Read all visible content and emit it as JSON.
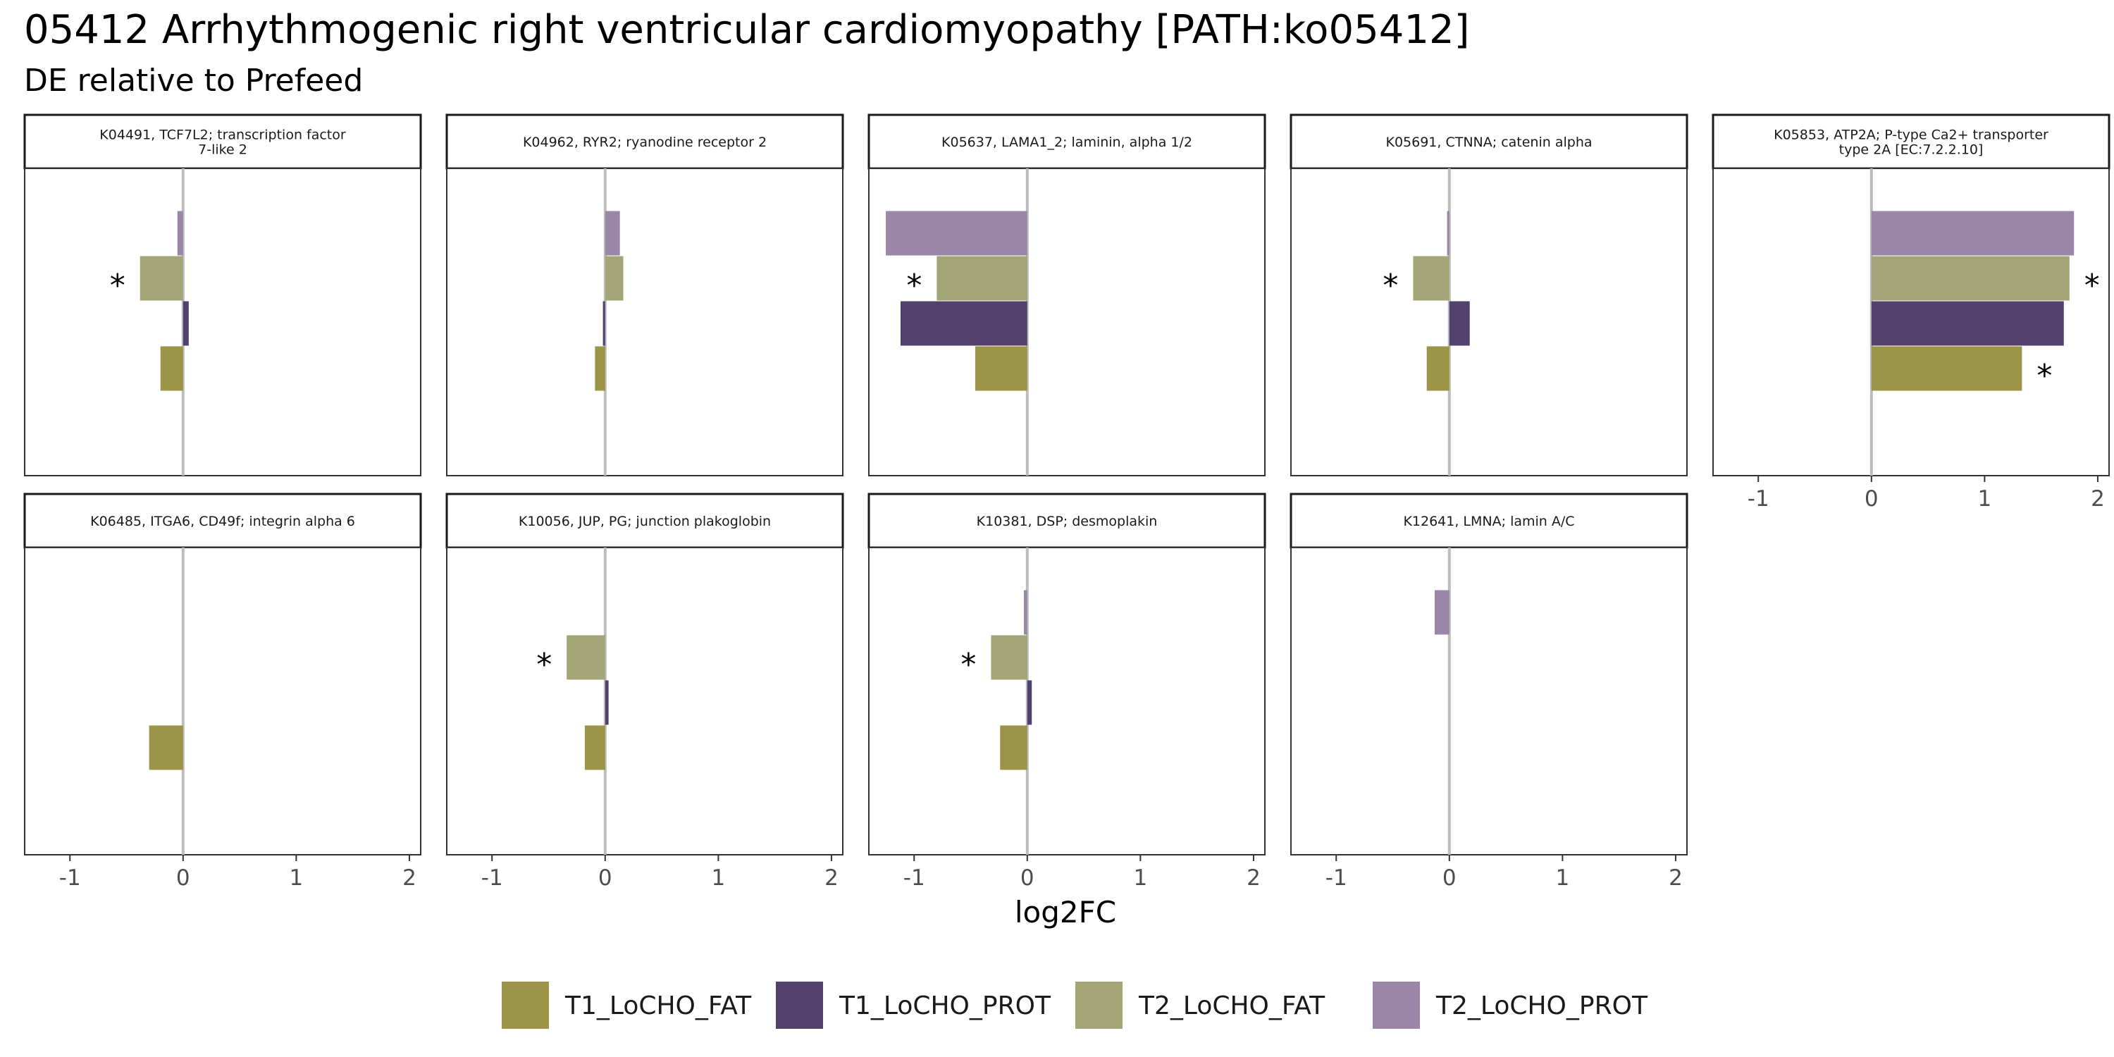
{
  "title": "05412 Arrhythmogenic right ventricular cardiomyopathy [PATH:ko05412]",
  "subtitle": "DE relative to Prefeed",
  "chart_data": {
    "type": "bar",
    "orientation": "horizontal",
    "facet_layout": "5 columns x 2 rows",
    "xlabel": "log2FC",
    "xlim": [
      -1.4,
      2.1
    ],
    "xticks": [
      -1,
      0,
      1,
      2
    ],
    "xtick_labels": [
      "-1",
      "0",
      "1",
      "2"
    ],
    "reference_line": 0,
    "significance_marker": "*",
    "legend": {
      "position": "bottom",
      "entries": [
        {
          "name": "T1_LoCHO_FAT",
          "color": "#9c9548"
        },
        {
          "name": "T1_LoCHO_PROT",
          "color": "#52416c"
        },
        {
          "name": "T2_LoCHO_FAT",
          "color": "#a3a577"
        },
        {
          "name": "T2_LoCHO_PROT",
          "color": "#9a86a6"
        }
      ]
    },
    "bar_order_top_to_bottom": [
      "T2_LoCHO_PROT",
      "T2_LoCHO_FAT",
      "T1_LoCHO_PROT",
      "T1_LoCHO_FAT"
    ],
    "panels": [
      {
        "label": [
          "K04491, TCF7L2; transcription factor",
          "7-like 2"
        ],
        "values": {
          "T2_LoCHO_PROT": -0.05,
          "T2_LoCHO_FAT": -0.38,
          "T1_LoCHO_PROT": 0.05,
          "T1_LoCHO_FAT": -0.2
        },
        "significant": [
          "T2_LoCHO_FAT"
        ]
      },
      {
        "label": [
          "K04962, RYR2; ryanodine receptor 2"
        ],
        "values": {
          "T2_LoCHO_PROT": 0.13,
          "T2_LoCHO_FAT": 0.16,
          "T1_LoCHO_PROT": -0.02,
          "T1_LoCHO_FAT": -0.09
        },
        "significant": []
      },
      {
        "label": [
          "K05637, LAMA1_2; laminin, alpha 1/2"
        ],
        "values": {
          "T2_LoCHO_PROT": -1.25,
          "T2_LoCHO_FAT": -0.8,
          "T1_LoCHO_PROT": -1.12,
          "T1_LoCHO_FAT": -0.46
        },
        "significant": [
          "T2_LoCHO_FAT"
        ]
      },
      {
        "label": [
          "K05691, CTNNA; catenin alpha"
        ],
        "values": {
          "T2_LoCHO_PROT": -0.02,
          "T2_LoCHO_FAT": -0.32,
          "T1_LoCHO_PROT": 0.18,
          "T1_LoCHO_FAT": -0.2
        },
        "significant": [
          "T2_LoCHO_FAT"
        ]
      },
      {
        "label": [
          "K05853, ATP2A; P-type Ca2+ transporter",
          "type 2A [EC:7.2.2.10]"
        ],
        "values": {
          "T2_LoCHO_PROT": 1.79,
          "T2_LoCHO_FAT": 1.75,
          "T1_LoCHO_PROT": 1.7,
          "T1_LoCHO_FAT": 1.33
        },
        "significant": [
          "T2_LoCHO_FAT",
          "T1_LoCHO_FAT"
        ]
      },
      {
        "label": [
          "K06485, ITGA6, CD49f; integrin alpha 6"
        ],
        "values": {
          "T1_LoCHO_FAT": -0.3
        },
        "significant": []
      },
      {
        "label": [
          "K10056, JUP, PG; junction plakoglobin"
        ],
        "values": {
          "T2_LoCHO_FAT": -0.34,
          "T1_LoCHO_PROT": 0.03,
          "T1_LoCHO_FAT": -0.18
        },
        "significant": [
          "T2_LoCHO_FAT"
        ]
      },
      {
        "label": [
          "K10381, DSP; desmoplakin"
        ],
        "values": {
          "T2_LoCHO_PROT": -0.03,
          "T2_LoCHO_FAT": -0.32,
          "T1_LoCHO_PROT": 0.04,
          "T1_LoCHO_FAT": -0.24
        },
        "significant": [
          "T2_LoCHO_FAT"
        ]
      },
      {
        "label": [
          "K12641, LMNA; lamin A/C"
        ],
        "values": {
          "T2_LoCHO_PROT": -0.13
        },
        "significant": []
      }
    ]
  }
}
